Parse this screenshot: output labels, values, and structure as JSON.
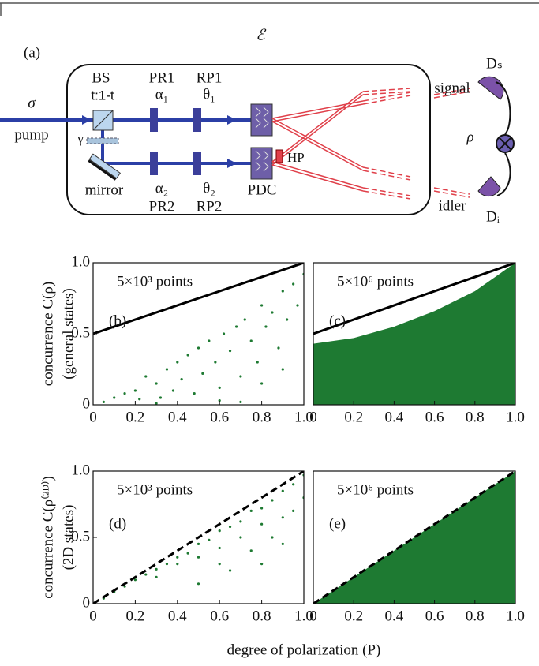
{
  "diagram": {
    "panel_label": "(a)",
    "environment": "ℰ",
    "bs": "BS",
    "ratio": "t:1-t",
    "pr1": "PR1",
    "alpha1": "α₁",
    "rp1": "RP1",
    "theta1": "θ₁",
    "sigma": "σ",
    "pump": "pump",
    "gamma": "γ",
    "mirror": "mirror",
    "alpha2": "α₂",
    "theta2": "θ₂",
    "pr2": "PR2",
    "rp2": "RP2",
    "pdc": "PDC",
    "hp": "HP",
    "signal": "signal",
    "ds": "Dₛ",
    "rho": "ρ",
    "idler": "idler",
    "di": "Dᵢ"
  },
  "figure": {
    "xlabel": "degree of polarization (P)",
    "ylabel_top": "concurrence C(ρ)",
    "ylabel_top_sub": "(general states)",
    "ylabel_bottom": "concurrence C(ρ⁽²ᴰ⁾)",
    "ylabel_bottom_sub": "(2D  states)"
  },
  "chart_data": [
    {
      "type": "scatter",
      "panel_label": "(b)",
      "annotation": "5×10³ points",
      "color": "#1e7a32",
      "xlim": [
        0,
        1
      ],
      "ylim": [
        0,
        1
      ],
      "xticks": [
        0,
        0.2,
        0.4,
        0.6,
        0.8,
        {
          "value": 1,
          "label": "1.0"
        }
      ],
      "yticks": [
        0,
        0.5,
        {
          "value": 1,
          "label": "1.0"
        }
      ],
      "points": {
        "x": [
          0.05,
          0.1,
          0.15,
          0.2,
          0.22,
          0.25,
          0.3,
          0.32,
          0.35,
          0.38,
          0.4,
          0.42,
          0.45,
          0.48,
          0.5,
          0.52,
          0.55,
          0.58,
          0.6,
          0.62,
          0.65,
          0.68,
          0.7,
          0.72,
          0.75,
          0.78,
          0.8,
          0.82,
          0.85,
          0.88,
          0.9,
          0.92,
          0.95,
          0.97,
          1.0,
          0.6,
          0.8,
          0.9,
          0.3,
          0.7
        ],
        "y": [
          0.02,
          0.05,
          0.08,
          0.1,
          0.04,
          0.2,
          0.15,
          0.05,
          0.25,
          0.1,
          0.3,
          0.18,
          0.35,
          0.08,
          0.4,
          0.22,
          0.45,
          0.3,
          0.12,
          0.5,
          0.38,
          0.55,
          0.2,
          0.6,
          0.45,
          0.3,
          0.7,
          0.55,
          0.65,
          0.4,
          0.8,
          0.6,
          0.85,
          0.7,
          0.92,
          0.03,
          0.15,
          0.25,
          0.01,
          0.02
        ]
      },
      "line": {
        "x": [
          0,
          1
        ],
        "y": [
          0.5,
          1
        ],
        "dashed": false
      }
    },
    {
      "type": "area",
      "panel_label": "(c)",
      "annotation": "5×10⁶ points",
      "color": "#1e7a32",
      "xlim": [
        0,
        1
      ],
      "ylim": [
        0,
        1
      ],
      "xticks": [
        0,
        0.2,
        0.4,
        0.6,
        0.8,
        {
          "value": 1,
          "label": "1.0"
        }
      ],
      "area": {
        "x": [
          0,
          0.2,
          0.4,
          0.6,
          0.8,
          1.0
        ],
        "y": [
          0.43,
          0.47,
          0.55,
          0.66,
          0.8,
          1.0
        ]
      },
      "line": {
        "x": [
          0,
          1
        ],
        "y": [
          0.5,
          1
        ],
        "dashed": false
      }
    },
    {
      "type": "scatter",
      "panel_label": "(d)",
      "annotation": "5×10³ points",
      "color": "#1e7a32",
      "xlim": [
        0,
        1
      ],
      "ylim": [
        0,
        1
      ],
      "xticks": [
        0,
        0.2,
        0.4,
        0.6,
        0.8,
        {
          "value": 1,
          "label": "1.0"
        }
      ],
      "yticks": [
        0,
        0.5,
        {
          "value": 1,
          "label": "1.0"
        }
      ],
      "points": {
        "x": [
          0.05,
          0.1,
          0.15,
          0.2,
          0.25,
          0.3,
          0.35,
          0.4,
          0.45,
          0.5,
          0.55,
          0.6,
          0.65,
          0.7,
          0.75,
          0.8,
          0.85,
          0.9,
          0.95,
          1.0,
          0.3,
          0.4,
          0.5,
          0.6,
          0.7,
          0.8,
          0.9,
          1.0,
          0.6,
          0.75,
          0.85,
          0.95,
          0.5,
          0.65,
          0.8,
          0.9
        ],
        "y": [
          0.04,
          0.09,
          0.13,
          0.18,
          0.22,
          0.26,
          0.3,
          0.35,
          0.38,
          0.45,
          0.48,
          0.55,
          0.58,
          0.62,
          0.7,
          0.72,
          0.78,
          0.85,
          0.9,
          0.97,
          0.2,
          0.3,
          0.35,
          0.42,
          0.5,
          0.6,
          0.65,
          0.8,
          0.3,
          0.4,
          0.5,
          0.7,
          0.15,
          0.25,
          0.3,
          0.45
        ]
      },
      "line": {
        "x": [
          0,
          1
        ],
        "y": [
          0,
          1
        ],
        "dashed": true
      }
    },
    {
      "type": "area",
      "panel_label": "(e)",
      "annotation": "5×10⁶ points",
      "color": "#1e7a32",
      "xlim": [
        0,
        1
      ],
      "ylim": [
        0,
        1
      ],
      "xticks": [
        0,
        0.2,
        0.4,
        0.6,
        0.8,
        {
          "value": 1,
          "label": "1.0"
        }
      ],
      "area": {
        "x": [
          0,
          1
        ],
        "y": [
          0,
          1
        ]
      },
      "line": {
        "x": [
          0,
          1
        ],
        "y": [
          0,
          1
        ],
        "dashed": true
      }
    }
  ]
}
